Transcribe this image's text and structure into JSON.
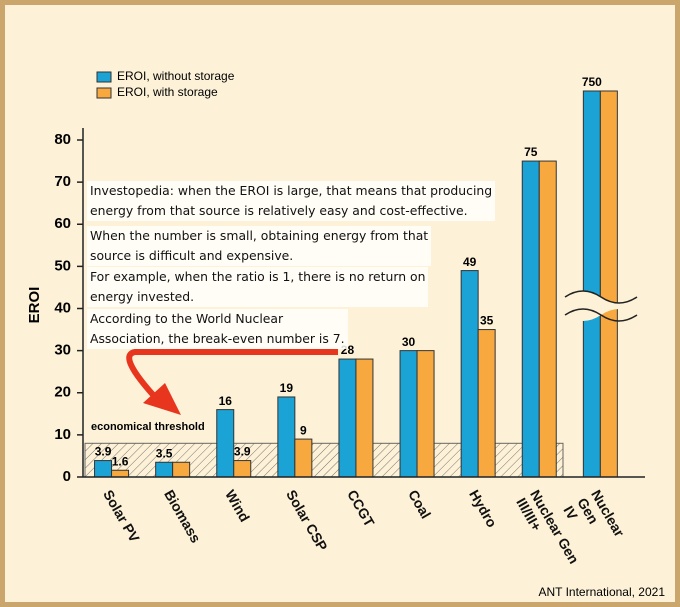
{
  "chart_data": {
    "type": "bar",
    "y_label": "EROI",
    "categories": [
      "Solar PV",
      "Biomass",
      "Wind",
      "Solar CSP",
      "CCGT",
      "Coal",
      "Hydro",
      "Nuclear Gen\nIII/III+",
      "Nuclear Gen\nIV"
    ],
    "series": [
      {
        "name": "EROI, without storage",
        "color": "#1ba3d6",
        "values": [
          3.9,
          3.5,
          16,
          19,
          28,
          30,
          49,
          75,
          750
        ],
        "value_labels": [
          "3.9",
          "3.5",
          "16",
          "19",
          "28",
          "30",
          "49",
          "75",
          "750"
        ]
      },
      {
        "name": "EROI, with storage",
        "color": "#f7a940",
        "values": [
          1.6,
          3.5,
          3.9,
          9,
          28,
          30,
          35,
          75,
          750
        ],
        "value_labels": [
          "1.6",
          null,
          "3.9",
          "9",
          null,
          null,
          "35",
          null,
          null
        ]
      }
    ],
    "ylim": [
      0,
      80
    ],
    "yticks": [
      0,
      10,
      20,
      30,
      40,
      50,
      60,
      70,
      80
    ],
    "axis_break": true,
    "threshold": 8,
    "threshold_label": "economical threshold",
    "annotations": [
      "Investopedia: when the EROI is large, that means that producing\nenergy from that source is relatively easy and cost-effective.",
      "When the number is small, obtaining energy from that\nsource is difficult and expensive.",
      "For example, when the ratio is 1, there is no return on\nenergy invested.",
      "According to the World Nuclear\nAssociation, the break-even number is 7."
    ],
    "source": "ANT International, 2021"
  }
}
